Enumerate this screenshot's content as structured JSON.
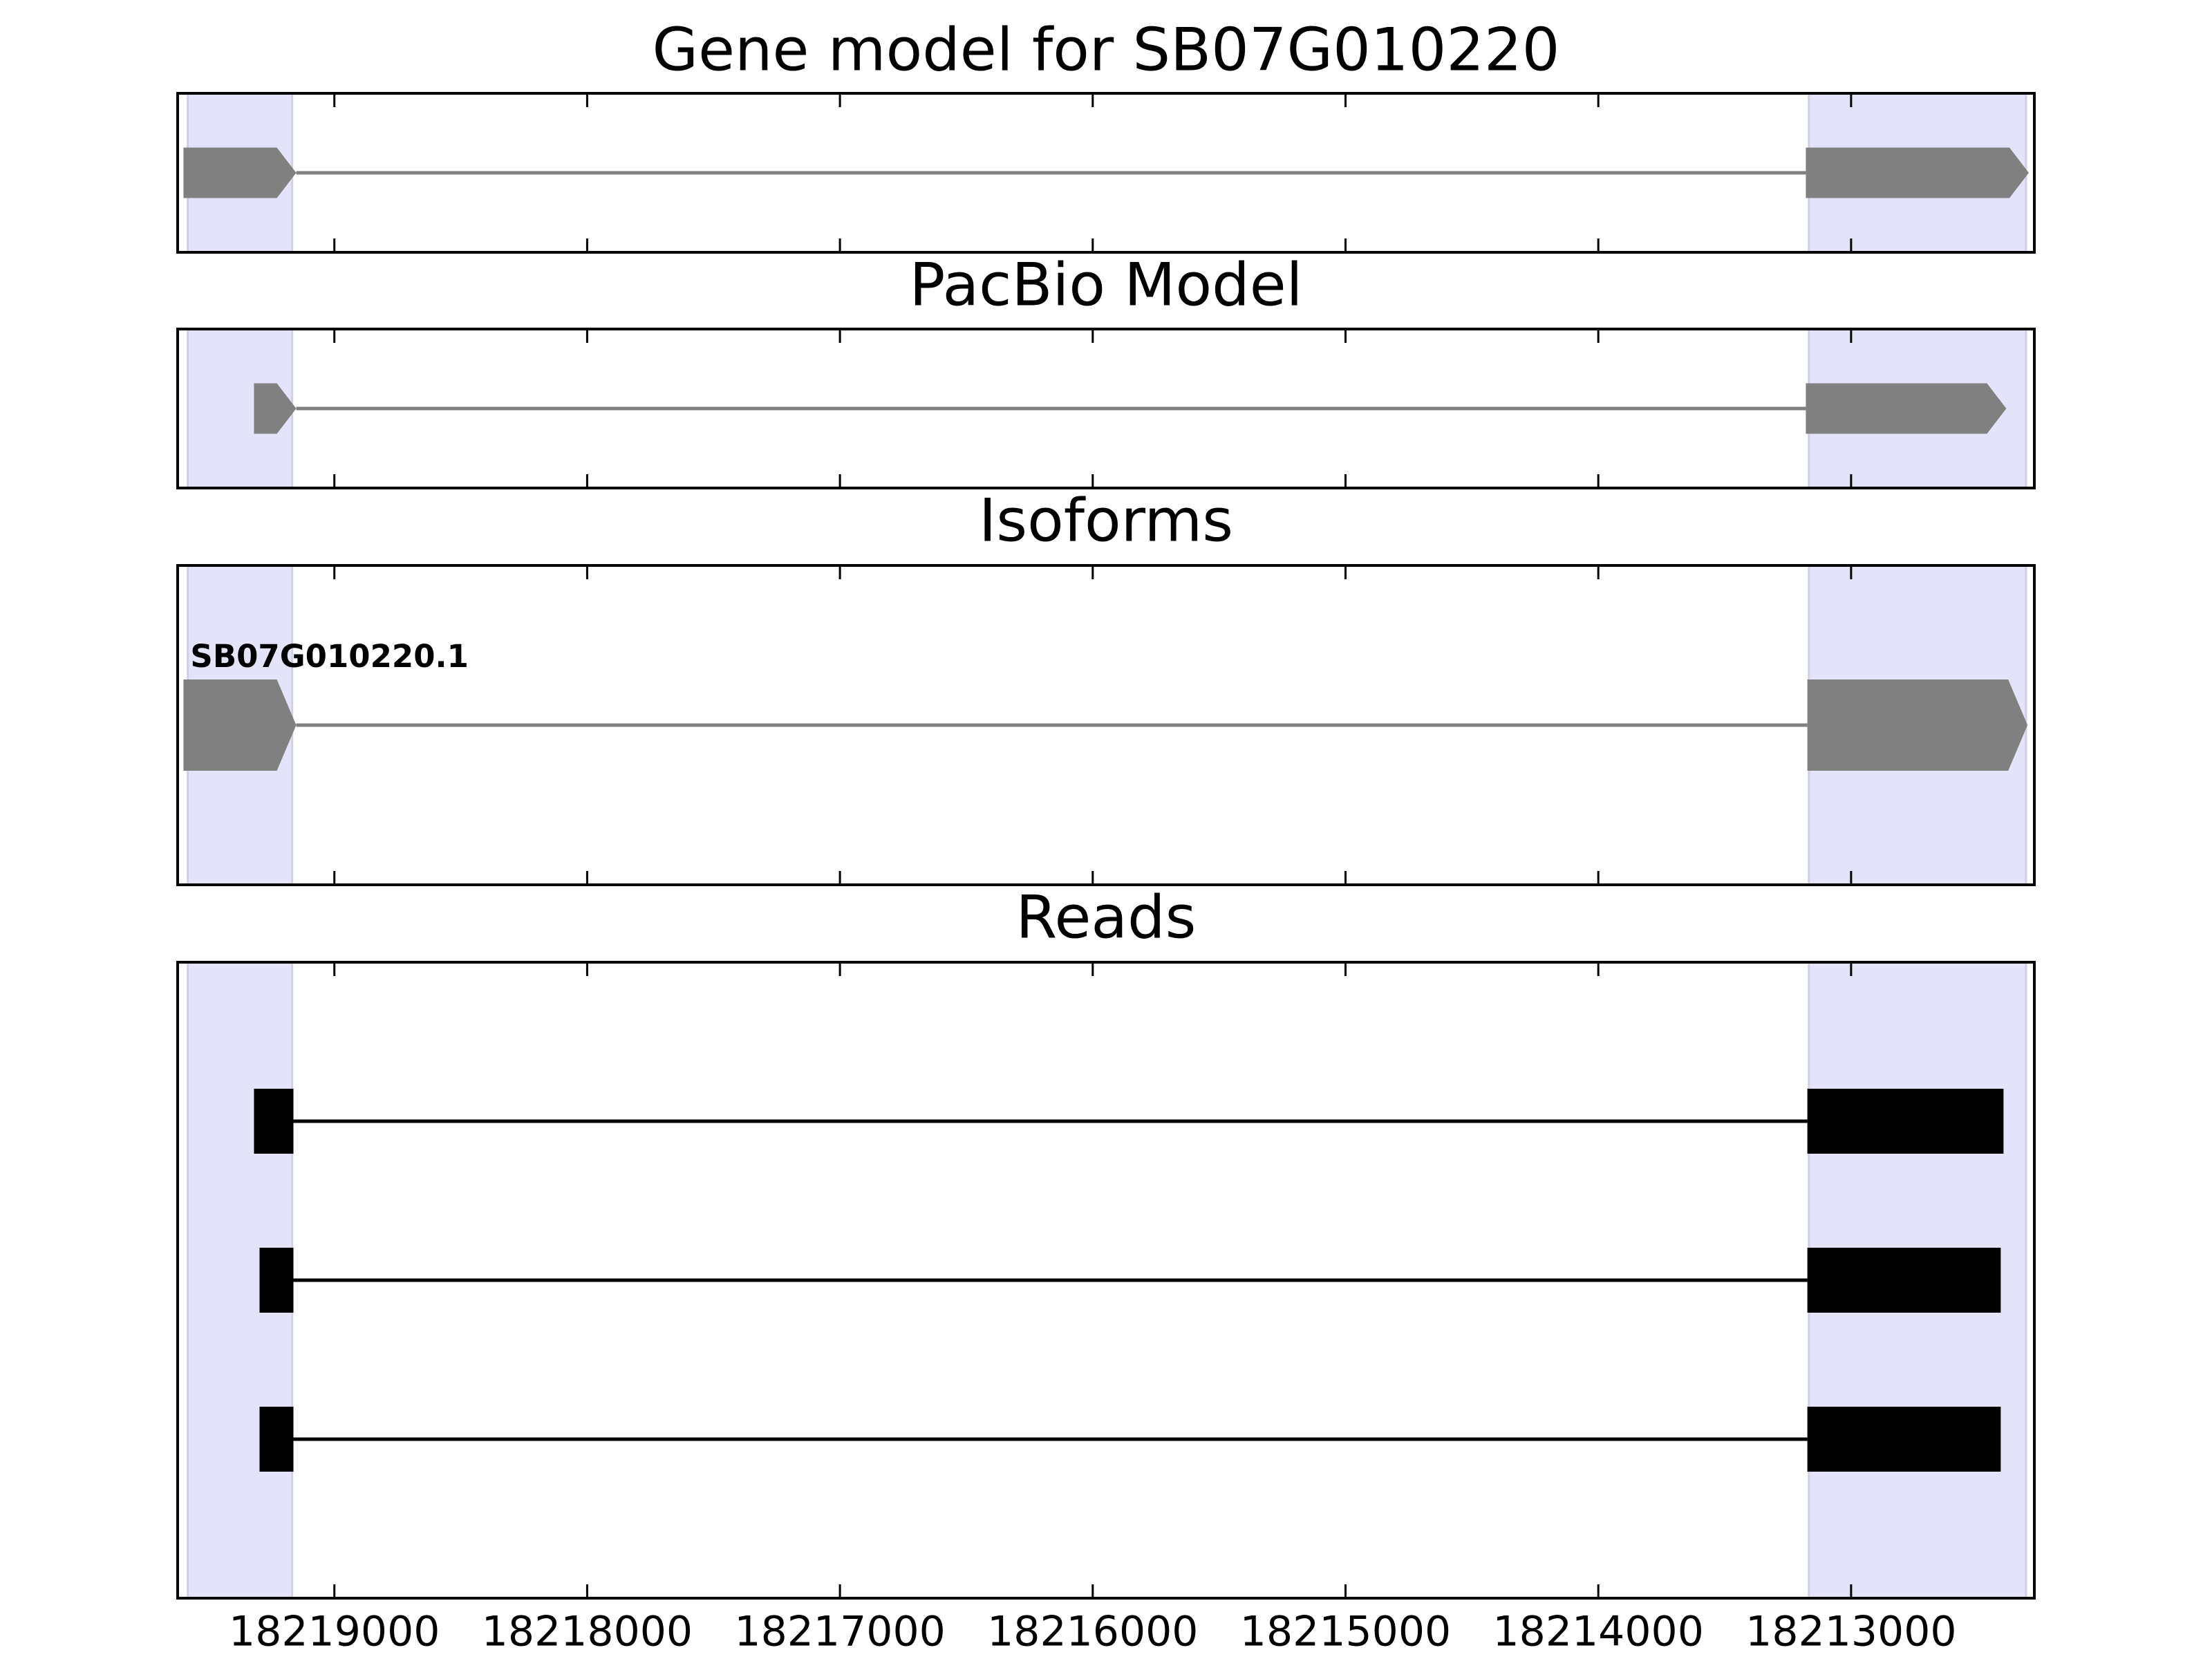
{
  "chart_data": [
    {
      "type": "gene-track",
      "title": "Gene model for SB07G010220",
      "color": "#808080",
      "arrows": true,
      "highlight_color": "#e3e3fa",
      "highlights": [
        [
          18219580,
          18219167
        ],
        [
          18213167,
          18212308
        ]
      ],
      "tracks": [
        {
          "exons": [
            [
              18219597,
              18219151
            ],
            [
              18213179,
              18212297
            ]
          ]
        }
      ],
      "xlim": [
        18219620,
        18212275
      ],
      "xticks": [
        18219000,
        18218000,
        18217000,
        18216000,
        18215000,
        18214000,
        18213000
      ]
    },
    {
      "type": "gene-track",
      "title": "PacBio Model",
      "color": "#808080",
      "arrows": true,
      "highlight_color": "#e3e3fa",
      "highlights": [
        [
          18219580,
          18219167
        ],
        [
          18213167,
          18212308
        ]
      ],
      "tracks": [
        {
          "exons": [
            [
              18219318,
              18219151
            ],
            [
              18213179,
              18212386
            ]
          ]
        }
      ],
      "xlim": [
        18219620,
        18212275
      ],
      "xticks": [
        18219000,
        18218000,
        18217000,
        18216000,
        18215000,
        18214000,
        18213000
      ]
    },
    {
      "type": "gene-track",
      "title": "Isoforms",
      "color": "#808080",
      "arrows": true,
      "highlight_color": "#e3e3fa",
      "highlights": [
        [
          18219580,
          18219167
        ],
        [
          18213167,
          18212308
        ]
      ],
      "tracks": [
        {
          "name": "SB07G010220.1",
          "exons": [
            [
              18219597,
              18219151
            ],
            [
              18213173,
              18212302
            ]
          ]
        }
      ],
      "xlim": [
        18219620,
        18212275
      ],
      "xticks": [
        18219000,
        18218000,
        18217000,
        18216000,
        18215000,
        18214000,
        18213000
      ]
    },
    {
      "type": "gene-track",
      "title": "Reads",
      "color": "#000000",
      "arrows": false,
      "highlight_color": "#e3e3fa",
      "highlights": [
        [
          18219580,
          18219167
        ],
        [
          18213167,
          18212308
        ]
      ],
      "tracks": [
        {
          "exons": [
            [
              18219318,
              18219162
            ],
            [
              18213173,
              18212397
            ]
          ]
        },
        {
          "exons": [
            [
              18219296,
              18219162
            ],
            [
              18213173,
              18212408
            ]
          ]
        },
        {
          "exons": [
            [
              18219296,
              18219162
            ],
            [
              18213173,
              18212408
            ]
          ]
        }
      ],
      "xlim": [
        18219620,
        18212275
      ],
      "xticks": [
        18219000,
        18218000,
        18217000,
        18216000,
        18215000,
        18214000,
        18213000
      ],
      "tick_labels": true
    }
  ]
}
